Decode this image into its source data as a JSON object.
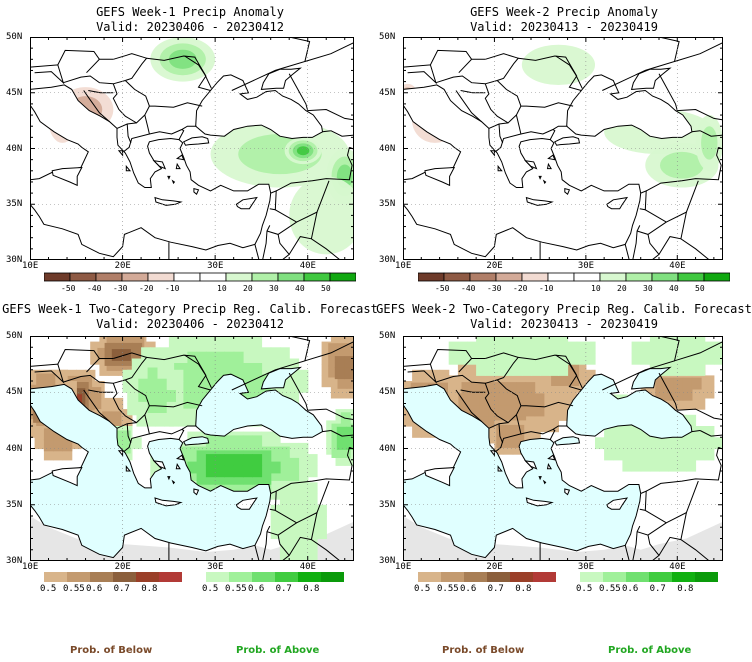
{
  "colors": {
    "land": "#ffffff",
    "sea": "#e0ffff",
    "missing": "#e6e6e6",
    "below_palette": [
      "#d8b48a",
      "#c39a6f",
      "#a87e55",
      "#8b5f3c",
      "#9a3f28",
      "#b23a36"
    ],
    "above_palette": [
      "#c8f8c0",
      "#a0f09a",
      "#70e070",
      "#40cc40",
      "#10b010",
      "#0a9a0a"
    ],
    "anom_palette": [
      "#6e3b2a",
      "#8e5a44",
      "#b07e68",
      "#d3aa98",
      "#f2dbd2",
      "#ffffff",
      "#ffffff",
      "#d8f8d0",
      "#b0f0a8",
      "#80e080",
      "#40c840",
      "#10a810"
    ],
    "foot_below": "#7a4a2a",
    "foot_above": "#22a722"
  },
  "panels": [
    {
      "title_line1": "GEFS Week-1 Precip Anomaly",
      "title_line2": "Valid: 20230406 - 20230412",
      "type": "anomaly",
      "xticks": [
        "10E",
        "20E",
        "30E",
        "40E"
      ],
      "yticks": [
        "50N",
        "45N",
        "40N",
        "35N",
        "30N"
      ],
      "colorbar_labels": [
        "-50",
        "-40",
        "-30",
        "-20",
        "-10",
        "10",
        "20",
        "30",
        "40",
        "50"
      ],
      "features": [
        {
          "kind": "wet",
          "lon": 37.0,
          "lat": 39.5,
          "rlon": 7.5,
          "rlat": 3.0,
          "level": 0.3
        },
        {
          "kind": "wet",
          "lon": 39.5,
          "lat": 39.8,
          "rlon": 2.0,
          "rlat": 1.2,
          "level": 0.7
        },
        {
          "kind": "wet",
          "lon": 44.0,
          "lat": 37.5,
          "rlon": 2.0,
          "rlat": 2.5,
          "level": 0.6
        },
        {
          "kind": "wet",
          "lon": 26.5,
          "lat": 48.0,
          "rlon": 3.5,
          "rlat": 2.0,
          "level": 0.5
        },
        {
          "kind": "wet",
          "lon": 42.0,
          "lat": 34.0,
          "rlon": 4.0,
          "rlat": 3.5,
          "level": 0.15
        },
        {
          "kind": "dry",
          "lon": 16.0,
          "lat": 43.5,
          "rlon": 3.0,
          "rlat": 2.0,
          "level": 0.3
        },
        {
          "kind": "dry",
          "lon": 13.5,
          "lat": 42.5,
          "rlon": 1.5,
          "rlat": 2.0,
          "level": 0.2
        }
      ]
    },
    {
      "title_line1": "GEFS Week-2 Precip Anomaly",
      "title_line2": "Valid: 20230413 - 20230419",
      "type": "anomaly",
      "xticks": [
        "10E",
        "20E",
        "30E",
        "40E"
      ],
      "yticks": [
        "50N",
        "45N",
        "40N",
        "35N",
        "30N"
      ],
      "colorbar_labels": [
        "-50",
        "-40",
        "-30",
        "-20",
        "-10",
        "10",
        "20",
        "30",
        "40",
        "50"
      ],
      "features": [
        {
          "kind": "wet",
          "lon": 27.0,
          "lat": 47.5,
          "rlon": 4.0,
          "rlat": 1.8,
          "level": 0.2
        },
        {
          "kind": "wet",
          "lon": 38.0,
          "lat": 41.5,
          "rlon": 6.0,
          "rlat": 2.0,
          "level": 0.15
        },
        {
          "kind": "wet",
          "lon": 40.5,
          "lat": 38.5,
          "rlon": 4.0,
          "rlat": 2.0,
          "level": 0.3
        },
        {
          "kind": "wet",
          "lon": 43.5,
          "lat": 40.5,
          "rlon": 1.5,
          "rlat": 2.5,
          "level": 0.4
        },
        {
          "kind": "dry",
          "lon": 13.5,
          "lat": 42.5,
          "rlon": 2.5,
          "rlat": 2.0,
          "level": 0.15
        },
        {
          "kind": "dry",
          "lon": 10.5,
          "lat": 45.0,
          "rlon": 1.0,
          "rlat": 0.8,
          "level": 0.3
        }
      ]
    },
    {
      "title_line1": "GEFS Week-1 Two-Category Precip Reg. Calib. Forecast",
      "title_line2": "Valid: 20230406 - 20230412",
      "type": "probability",
      "xticks": [
        "10E",
        "20E",
        "30E",
        "40E"
      ],
      "yticks": [
        "50N",
        "45N",
        "40N",
        "35N",
        "30N"
      ],
      "colorbar_below_labels": [
        "0.5",
        "0.55",
        "0.6",
        "0.7",
        "0.8"
      ],
      "colorbar_above_labels": [
        "0.5",
        "0.55",
        "0.6",
        "0.7",
        "0.8"
      ],
      "seed": 11,
      "features": [
        {
          "kind": "below",
          "lon": 14.5,
          "lat": 44.5,
          "rlon": 3.5,
          "rlat": 2.5,
          "level": 0.9
        },
        {
          "kind": "below",
          "lon": 12.0,
          "lat": 44.0,
          "rlon": 3.0,
          "rlat": 3.0,
          "level": 0.7
        },
        {
          "kind": "below",
          "lon": 13.0,
          "lat": 41.0,
          "rlon": 2.5,
          "rlat": 2.0,
          "level": 0.4
        },
        {
          "kind": "below",
          "lon": 20.0,
          "lat": 48.5,
          "rlon": 3.5,
          "rlat": 2.0,
          "level": 0.6
        },
        {
          "kind": "below",
          "lon": 44.0,
          "lat": 47.5,
          "rlon": 2.5,
          "rlat": 3.0,
          "level": 0.5
        },
        {
          "kind": "below",
          "lon": 19.0,
          "lat": 42.5,
          "rlon": 2.0,
          "rlat": 2.0,
          "level": 0.4
        },
        {
          "kind": "above",
          "lon": 32.0,
          "lat": 38.5,
          "rlon": 9.0,
          "rlat": 3.0,
          "level": 0.6
        },
        {
          "kind": "above",
          "lon": 30.0,
          "lat": 46.0,
          "rlon": 10.0,
          "rlat": 4.0,
          "level": 0.4
        },
        {
          "kind": "above",
          "lon": 23.5,
          "lat": 45.0,
          "rlon": 3.0,
          "rlat": 3.0,
          "level": 0.4
        },
        {
          "kind": "above",
          "lon": 44.0,
          "lat": 41.0,
          "rlon": 2.0,
          "rlat": 2.5,
          "level": 0.5
        },
        {
          "kind": "above",
          "lon": 39.0,
          "lat": 33.5,
          "rlon": 3.0,
          "rlat": 3.5,
          "level": 0.2
        },
        {
          "kind": "above",
          "lon": 20.0,
          "lat": 40.5,
          "rlon": 2.0,
          "rlat": 1.5,
          "level": 0.3
        }
      ]
    },
    {
      "title_line1": "GEFS Week-2 Two-Category Precip Reg. Calib. Forecast",
      "title_line2": "Valid: 20230413 - 20230419",
      "type": "probability",
      "xticks": [
        "10E",
        "20E",
        "30E",
        "40E"
      ],
      "yticks": [
        "50N",
        "45N",
        "40N",
        "35N",
        "30N"
      ],
      "colorbar_below_labels": [
        "0.5",
        "0.55",
        "0.6",
        "0.7",
        "0.8"
      ],
      "colorbar_above_labels": [
        "0.5",
        "0.55",
        "0.6",
        "0.7",
        "0.8"
      ],
      "seed": 23,
      "features": [
        {
          "kind": "below",
          "lon": 20.5,
          "lat": 44.0,
          "rlon": 8.5,
          "rlat": 3.5,
          "level": 0.35
        },
        {
          "kind": "below",
          "lon": 13.0,
          "lat": 44.0,
          "rlon": 3.0,
          "rlat": 3.0,
          "level": 0.5
        },
        {
          "kind": "below",
          "lon": 22.0,
          "lat": 41.0,
          "rlon": 3.0,
          "rlat": 1.5,
          "level": 0.4
        },
        {
          "kind": "below",
          "lon": 28.0,
          "lat": 46.5,
          "rlon": 3.0,
          "rlat": 1.5,
          "level": 0.25
        },
        {
          "kind": "below",
          "lon": 40.0,
          "lat": 45.5,
          "rlon": 4.0,
          "rlat": 2.0,
          "level": 0.25
        },
        {
          "kind": "above",
          "lon": 23.0,
          "lat": 48.5,
          "rlon": 8.0,
          "rlat": 2.0,
          "level": 0.2
        },
        {
          "kind": "above",
          "lon": 38.0,
          "lat": 40.5,
          "rlon": 7.0,
          "rlat": 2.5,
          "level": 0.2
        },
        {
          "kind": "above",
          "lon": 40.0,
          "lat": 48.5,
          "rlon": 5.0,
          "rlat": 2.0,
          "level": 0.2
        },
        {
          "kind": "above",
          "lon": 32.0,
          "lat": 44.0,
          "rlon": 2.5,
          "rlat": 1.2,
          "level": 0.2
        }
      ]
    }
  ],
  "footer": {
    "left_label": "Prob. of Below",
    "right_label": "Prob. of Above"
  }
}
